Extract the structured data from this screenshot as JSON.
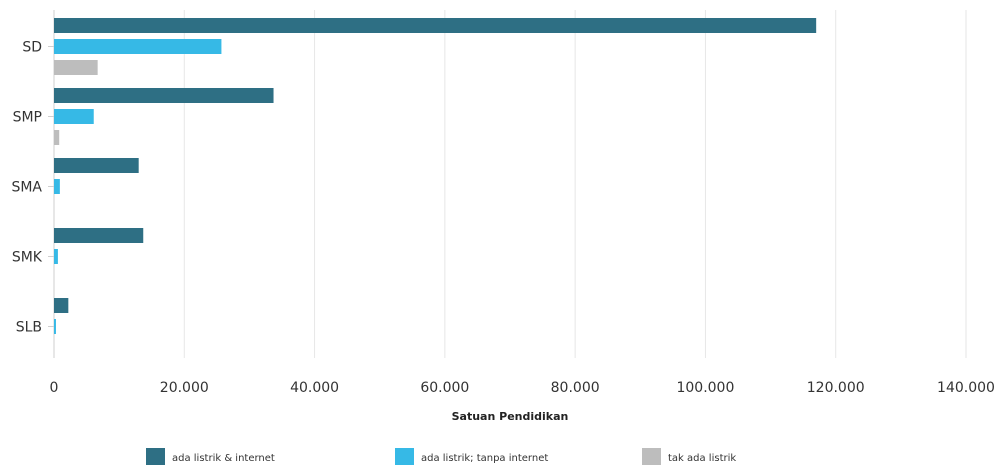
{
  "chart_data": {
    "type": "bar",
    "orientation": "horizontal",
    "categories": [
      "SD",
      "SMP",
      "SMA",
      "SMK",
      "SLB"
    ],
    "series": [
      {
        "name": "ada listrik & internet",
        "color": "#2e6f84",
        "values": [
          117000,
          33700,
          13000,
          13700,
          2200
        ]
      },
      {
        "name": "ada listrik; tanpa internet",
        "color": "#36b9e6",
        "values": [
          25700,
          6100,
          900,
          600,
          300
        ]
      },
      {
        "name": "tak ada listrik",
        "color": "#bdbdbd",
        "values": [
          6700,
          800,
          0,
          0,
          0
        ]
      }
    ],
    "xlabel": "Satuan Pendidikan",
    "xlim": [
      0,
      140000
    ],
    "xticks": [
      0,
      20000,
      40000,
      60000,
      80000,
      100000,
      120000,
      140000
    ],
    "xtick_labels": [
      "0",
      "20.000",
      "40.000",
      "60.000",
      "80.000",
      "100.000",
      "120.000",
      "140.000"
    ],
    "grid": true,
    "legend_position": "bottom"
  }
}
